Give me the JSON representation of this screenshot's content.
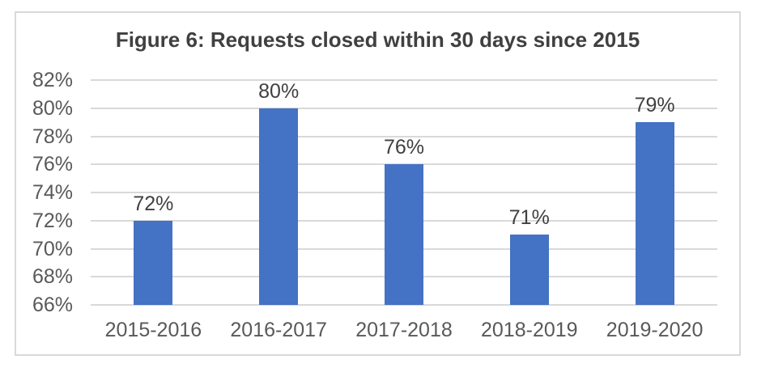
{
  "chart_data": {
    "type": "bar",
    "title": "Figure 6: Requests closed within 30 days since 2015",
    "categories": [
      "2015-2016",
      "2016-2017",
      "2017-2018",
      "2018-2019",
      "2019-2020"
    ],
    "values": [
      72,
      80,
      76,
      71,
      79
    ],
    "data_labels": [
      "72%",
      "80%",
      "76%",
      "71%",
      "79%"
    ],
    "xlabel": "",
    "ylabel": "",
    "ylim": [
      66,
      82
    ],
    "ytick_step": 2,
    "ytick_labels_bottom_to_top": [
      "66%",
      "68%",
      "70%",
      "72%",
      "74%",
      "76%",
      "78%",
      "80%",
      "82%"
    ],
    "grid": "horizontal",
    "legend": "none",
    "colors": {
      "bar": "#4472C4",
      "gridline": "#D9D9D9",
      "frame_border": "#D9D9D9",
      "title_text": "#404040",
      "axis_text": "#595959",
      "data_label_text": "#404040",
      "background": "#FFFFFF"
    }
  }
}
